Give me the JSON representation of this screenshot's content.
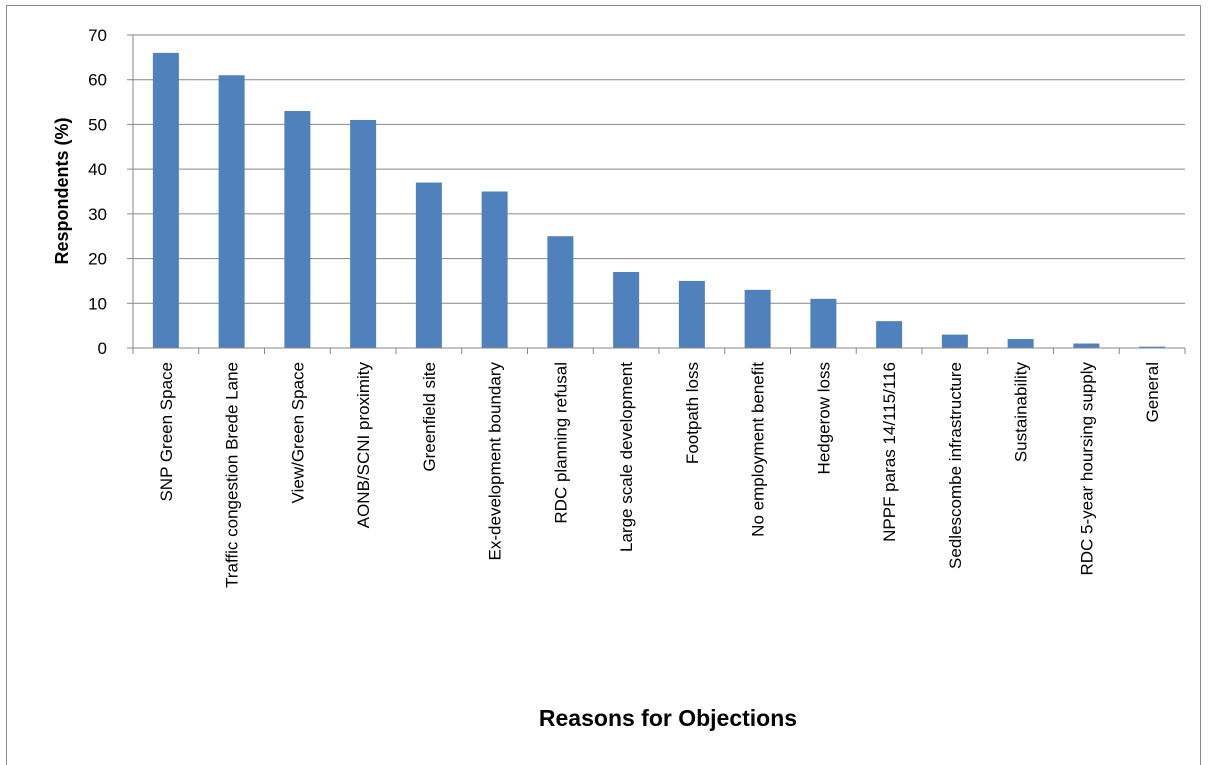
{
  "chart_data": {
    "type": "bar",
    "xlabel": "Reasons for Objections",
    "ylabel": "Respondents (%)",
    "ylim": [
      0,
      70
    ],
    "yticks": [
      0,
      10,
      20,
      30,
      40,
      50,
      60,
      70
    ],
    "grid": true,
    "legend": "none",
    "bar_color": "#4f81bd",
    "categories": [
      "SNP Green Space",
      "Traffic congestion Brede Lane",
      "View/Green Space",
      "AONB/SCNI proximity",
      "Greenfield site",
      "Ex-development boundary",
      "RDC planning refusal",
      "Large scale development",
      "Footpath loss",
      "No employment benefit",
      "Hedgerow loss",
      "NPPF paras 14/115/116",
      "Sedlescombe infrastructure",
      "Sustainability",
      "RDC 5-year hoursing supply",
      "General"
    ],
    "values": [
      66,
      61,
      53,
      51,
      37,
      35,
      25,
      17,
      15,
      13,
      11,
      6,
      3,
      2,
      1,
      0.3
    ]
  }
}
